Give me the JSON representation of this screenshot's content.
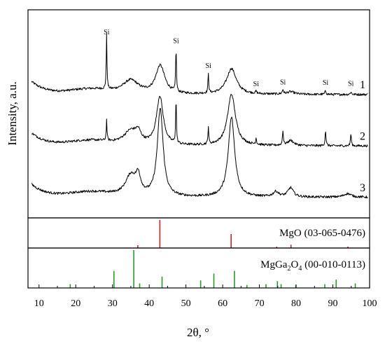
{
  "chart_data": {
    "type": "line",
    "xlabel": "2θ, °",
    "ylabel": "Intensity, a.u.",
    "xlim": [
      7,
      100
    ],
    "x_ticks": [
      10,
      20,
      30,
      40,
      50,
      60,
      70,
      80,
      90,
      100
    ],
    "grid": false,
    "xrd_patterns": [
      {
        "name": "1",
        "y_offset": 2.0,
        "peaks": [
          {
            "x": 28.4,
            "height": 1.05,
            "width": 0.12,
            "label": "Si"
          },
          {
            "x": 35.0,
            "height": 0.26,
            "width": 2.6
          },
          {
            "x": 43.0,
            "height": 0.55,
            "width": 1.5
          },
          {
            "x": 47.3,
            "height": 0.88,
            "width": 0.12,
            "label": "Si"
          },
          {
            "x": 56.1,
            "height": 0.4,
            "width": 0.12,
            "label": "Si"
          },
          {
            "x": 62.4,
            "height": 0.5,
            "width": 1.6
          },
          {
            "x": 69.1,
            "height": 0.04,
            "width": 0.2,
            "label": "Si"
          },
          {
            "x": 76.4,
            "height": 0.08,
            "width": 0.2,
            "label": "Si"
          },
          {
            "x": 78.5,
            "height": 0.05,
            "width": 1.2
          },
          {
            "x": 88.0,
            "height": 0.07,
            "width": 0.2,
            "label": "Si"
          },
          {
            "x": 94.9,
            "height": 0.05,
            "width": 0.2,
            "label": "Si"
          }
        ]
      },
      {
        "name": "2",
        "y_offset": 1.0,
        "peaks": [
          {
            "x": 28.4,
            "height": 0.4,
            "width": 0.12
          },
          {
            "x": 35.0,
            "height": 0.27,
            "width": 2.3
          },
          {
            "x": 37.0,
            "height": 0.18,
            "width": 0.9
          },
          {
            "x": 42.9,
            "height": 0.95,
            "width": 1.1
          },
          {
            "x": 47.3,
            "height": 0.9,
            "width": 0.12
          },
          {
            "x": 56.1,
            "height": 0.35,
            "width": 0.12
          },
          {
            "x": 62.4,
            "height": 1.0,
            "width": 1.3
          },
          {
            "x": 69.1,
            "height": 0.12,
            "width": 0.15
          },
          {
            "x": 76.4,
            "height": 0.28,
            "width": 0.15
          },
          {
            "x": 78.5,
            "height": 0.1,
            "width": 1.0
          },
          {
            "x": 88.0,
            "height": 0.3,
            "width": 0.15
          },
          {
            "x": 94.9,
            "height": 0.23,
            "width": 0.15
          }
        ]
      },
      {
        "name": "3",
        "y_offset": 0.0,
        "peaks": [
          {
            "x": 35.0,
            "height": 0.4,
            "width": 1.8
          },
          {
            "x": 37.0,
            "height": 0.32,
            "width": 0.8
          },
          {
            "x": 43.0,
            "height": 1.7,
            "width": 0.95
          },
          {
            "x": 62.4,
            "height": 1.55,
            "width": 1.05
          },
          {
            "x": 74.5,
            "height": 0.1,
            "width": 0.9
          },
          {
            "x": 78.5,
            "height": 0.18,
            "width": 0.9
          },
          {
            "x": 94.0,
            "height": 0.07,
            "width": 1.2
          }
        ]
      }
    ],
    "reference_panels": [
      {
        "label": "MgO (03-065-0476)",
        "color": "#cc2222",
        "lines": [
          {
            "x": 36.9,
            "intensity": 0.1
          },
          {
            "x": 42.9,
            "intensity": 1.0
          },
          {
            "x": 62.3,
            "intensity": 0.5
          },
          {
            "x": 74.7,
            "intensity": 0.05
          },
          {
            "x": 78.6,
            "intensity": 0.12
          },
          {
            "x": 94.1,
            "intensity": 0.05
          }
        ]
      },
      {
        "label_main": "MgGa",
        "label_sub1": "2",
        "label_mid": "O",
        "label_sub2": "4",
        "label_tail": " (00-010-0113)",
        "color": "#2a9a2a",
        "lines": [
          {
            "x": 18.5,
            "intensity": 0.1
          },
          {
            "x": 30.4,
            "intensity": 0.45
          },
          {
            "x": 35.8,
            "intensity": 1.0
          },
          {
            "x": 37.4,
            "intensity": 0.12
          },
          {
            "x": 43.5,
            "intensity": 0.3
          },
          {
            "x": 54.0,
            "intensity": 0.2
          },
          {
            "x": 57.6,
            "intensity": 0.38
          },
          {
            "x": 63.2,
            "intensity": 0.45
          },
          {
            "x": 66.6,
            "intensity": 0.08
          },
          {
            "x": 71.8,
            "intensity": 0.1
          },
          {
            "x": 74.9,
            "intensity": 0.18
          },
          {
            "x": 75.9,
            "intensity": 0.1
          },
          {
            "x": 79.9,
            "intensity": 0.08
          },
          {
            "x": 87.8,
            "intensity": 0.1
          },
          {
            "x": 90.9,
            "intensity": 0.22
          },
          {
            "x": 96.1,
            "intensity": 0.12
          }
        ]
      }
    ]
  }
}
